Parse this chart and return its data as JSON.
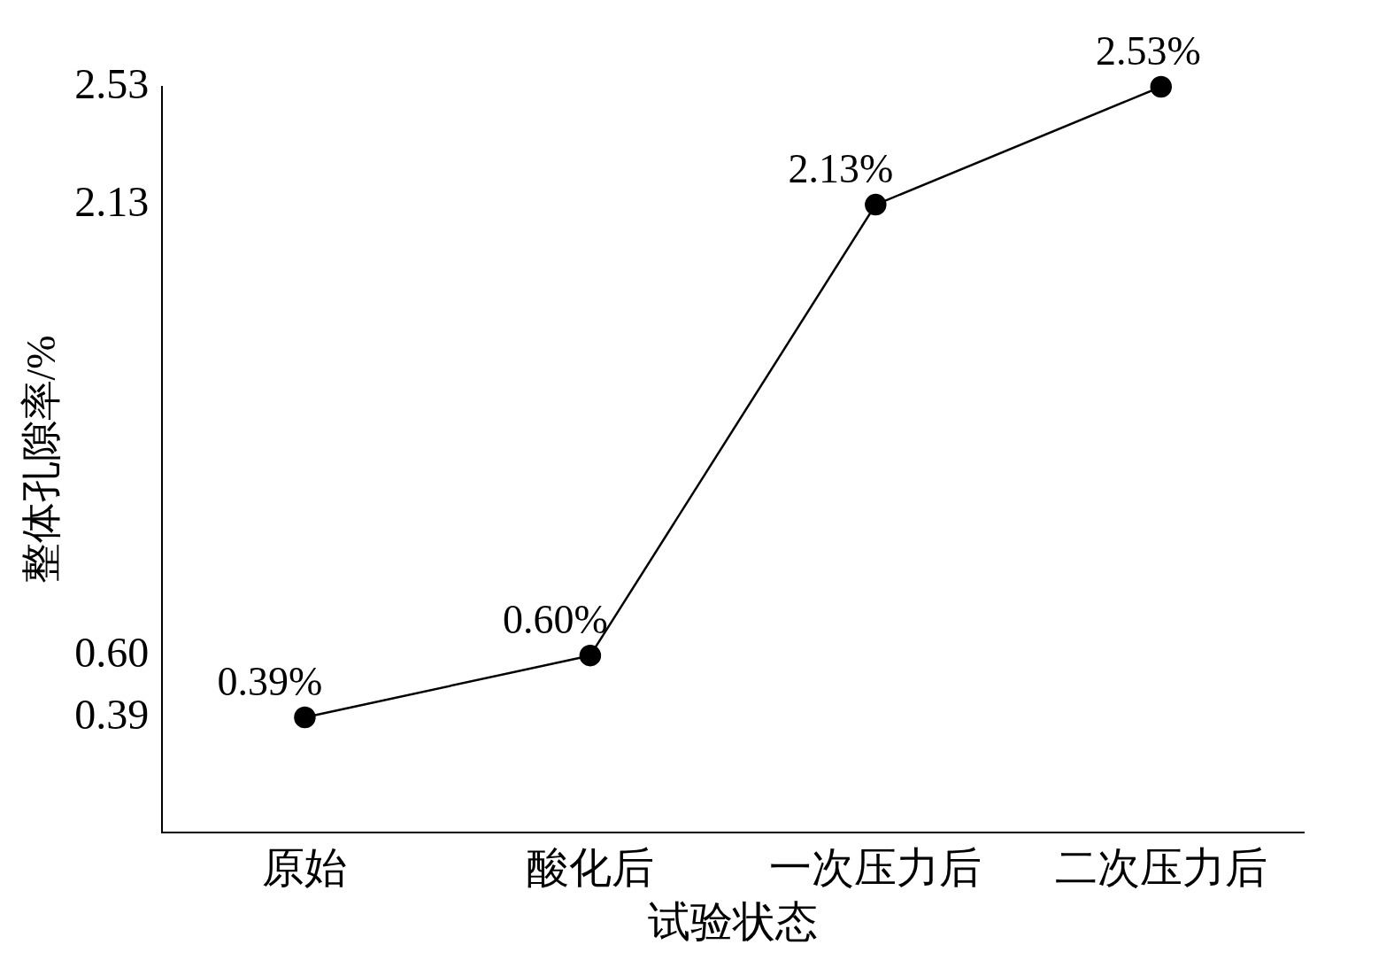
{
  "chart_data": {
    "type": "line",
    "xlabel": "试验状态",
    "ylabel": "整体孔隙率/%",
    "categories": [
      "原始",
      "酸化后",
      "一次压力后",
      "二次压力后"
    ],
    "values": [
      0.39,
      0.6,
      2.13,
      2.53
    ],
    "value_labels": [
      "0.39%",
      "0.60%",
      "2.13%",
      "2.53%"
    ],
    "color": "#000000",
    "ylim": [
      0,
      2.53
    ],
    "marker": "circle",
    "line_style": "solid",
    "grid": false,
    "legend": false,
    "yticks": [
      {
        "value": 0.39,
        "label": "0.39"
      },
      {
        "value": 0.6,
        "label": "0.60"
      },
      {
        "value": 2.13,
        "label": "2.13"
      },
      {
        "value": 2.53,
        "label": "2.53"
      }
    ]
  }
}
